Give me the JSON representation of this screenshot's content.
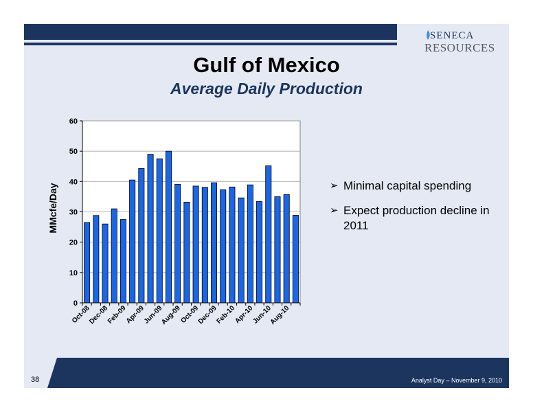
{
  "slide": {
    "title": "Gulf of Mexico",
    "subtitle": "Average Daily Production",
    "page_number": "38",
    "footer": "Analyst Day – November 9, 2010",
    "logo_top": "SENECA",
    "logo_bottom": "RESOURCES",
    "bullet_marker": "➢",
    "bullets": [
      "Minimal capital spending",
      "Expect production decline in 2011"
    ]
  },
  "colors": {
    "navy": "#1c355e",
    "bar": "#1a66e8",
    "background": "#e4e9f3"
  },
  "chart_data": {
    "type": "bar",
    "title": "",
    "xlabel": "",
    "ylabel": "MMcfe/Day",
    "ylim": [
      0,
      60
    ],
    "yticks": [
      0,
      10,
      20,
      30,
      40,
      50,
      60
    ],
    "grid": true,
    "categories": [
      "Oct-08",
      "Nov-08",
      "Dec-08",
      "Jan-09",
      "Feb-09",
      "Mar-09",
      "Apr-09",
      "May-09",
      "Jun-09",
      "Jul-09",
      "Aug-09",
      "Sep-09",
      "Oct-09",
      "Nov-09",
      "Dec-09",
      "Jan-10",
      "Feb-10",
      "Mar-10",
      "Apr-10",
      "May-10",
      "Jun-10",
      "Jul-10",
      "Aug-10",
      "Sep-10"
    ],
    "tick_labels": [
      "Oct-08",
      "Dec-08",
      "Feb-09",
      "Apr-09",
      "Jun-09",
      "Aug-09",
      "Oct-09",
      "Dec-09",
      "Feb-10",
      "Apr-10",
      "Jun-10",
      "Aug-10"
    ],
    "values": [
      26.5,
      28.8,
      26.0,
      31.0,
      27.5,
      40.5,
      44.3,
      49.0,
      47.5,
      50.0,
      39.1,
      33.2,
      38.5,
      38.1,
      39.6,
      37.3,
      38.2,
      34.6,
      38.9,
      33.4,
      45.2,
      35.0,
      35.7,
      28.9
    ]
  }
}
